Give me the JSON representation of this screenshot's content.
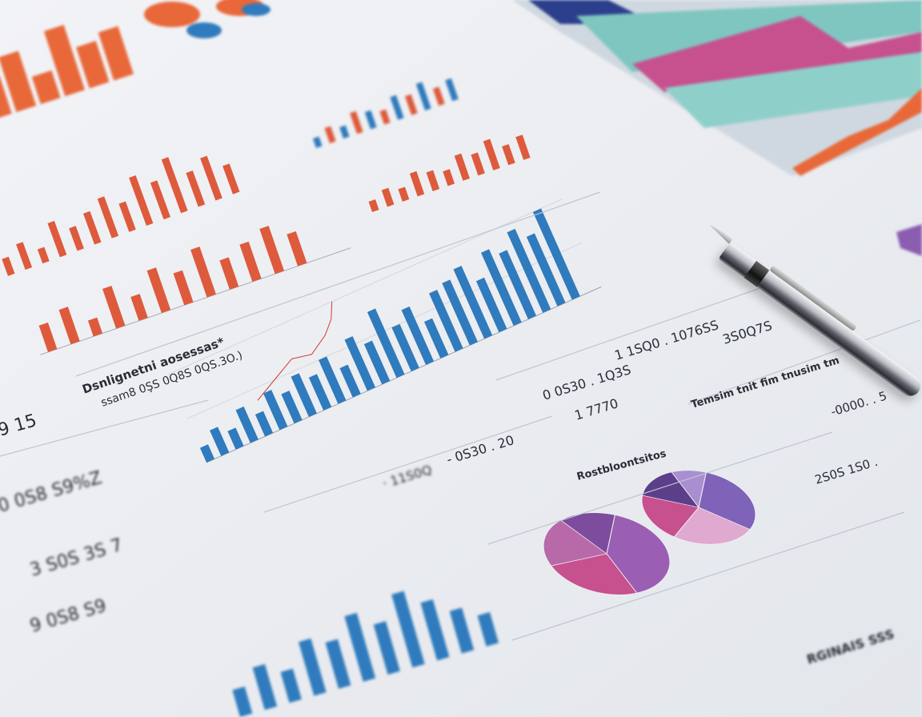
{
  "scene": {
    "description_colors": {
      "paper": "#f6f7f9",
      "orange": "#e8683a",
      "red": "#de5a3c",
      "blue": "#2f7bbd",
      "purple": "#8a5db0",
      "pink": "#c7508f",
      "teal": "#7fc6c0",
      "navy": "#2b3f8c"
    },
    "icons": [
      "pen-icon"
    ]
  },
  "texts": {
    "heading_main": "Dsnlignetni aosessas*",
    "heading_sub": "ssam8 0ŞS 0Q8S 0QS.3O.)",
    "left_value_1": "9 15",
    "left_value_2": "0 0S8 S9%Z",
    "left_value_3": "3 S0S 3S 7",
    "left_value_4": "9 0S8 S9",
    "mid_value_1": "1 1SQ0 . 1076SS",
    "mid_value_2": "0 0S30 . 1Q3S",
    "mid_value_3": "3S0Q7S",
    "mid_value_4": "1 7770",
    "mid_value_5": "- 0S30 . 20",
    "mid_value_6": "· 11S0Q",
    "pie_title": "Rostbloontsitos",
    "right_heading": "Temsim tnit fim tnusim tm",
    "right_value_1": "-0000. . 5",
    "right_value_2": "2S0S 1S0 .",
    "bottom_right": "RGINAIS SSS"
  },
  "chart_data": [
    {
      "type": "bar",
      "series": [
        {
          "values": [
            55,
            80,
            40,
            95,
            60,
            70
          ]
        }
      ]
    },
    {
      "type": "bar",
      "series": [
        {
          "values": [
            30,
            45,
            25,
            60,
            40,
            55,
            70,
            50,
            85,
            65,
            95,
            60,
            75,
            50
          ]
        }
      ]
    },
    {
      "type": "bar",
      "series": [
        {
          "values": [
            50,
            65,
            30,
            75,
            45,
            80,
            60,
            90,
            55,
            70,
            85,
            60
          ]
        }
      ]
    },
    {
      "type": "bar",
      "series": [
        {
          "values": [
            25,
            40,
            30,
            55,
            45,
            35,
            60,
            50,
            70,
            45,
            55
          ]
        }
      ]
    },
    {
      "type": "bar",
      "series": [
        {
          "values": [
            20,
            35,
            25,
            45,
            30,
            50,
            40,
            55,
            45,
            60,
            40,
            70,
            55,
            90,
            60,
            75,
            50,
            80,
            85,
            95,
            70,
            100,
            90,
            110,
            95,
            120
          ]
        }
      ]
    },
    {
      "type": "bar",
      "series": [
        {
          "values": [
            35,
            55,
            40,
            70,
            60,
            85,
            65,
            95,
            75,
            55,
            40
          ]
        }
      ]
    },
    {
      "type": "pie",
      "values": [
        40,
        25,
        20,
        15
      ]
    },
    {
      "type": "pie",
      "values": [
        30,
        25,
        20,
        15,
        10
      ]
    }
  ]
}
